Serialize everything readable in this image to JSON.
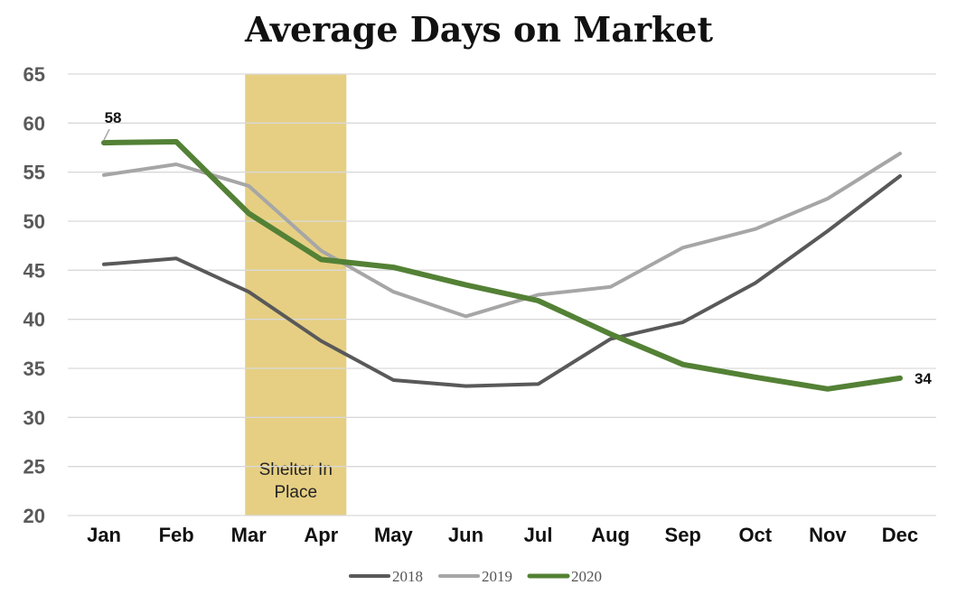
{
  "chart_data": {
    "type": "line",
    "title": "Average Days on Market",
    "categories": [
      "Jan",
      "Feb",
      "Mar",
      "Apr",
      "May",
      "Jun",
      "Jul",
      "Aug",
      "Sep",
      "Oct",
      "Nov",
      "Dec"
    ],
    "ylim": [
      20,
      65
    ],
    "yticks": [
      20,
      25,
      30,
      35,
      40,
      45,
      50,
      55,
      60,
      65
    ],
    "grid": true,
    "legend": "bottom",
    "series": [
      {
        "name": "2018",
        "color": "#595959",
        "values": [
          45.6,
          46.2,
          42.8,
          37.8,
          33.8,
          33.2,
          33.4,
          38.0,
          39.7,
          43.7,
          49.0,
          54.6
        ]
      },
      {
        "name": "2019",
        "color": "#a6a6a6",
        "values": [
          54.7,
          55.8,
          53.6,
          47.0,
          42.8,
          40.3,
          42.5,
          43.3,
          47.3,
          49.2,
          52.3,
          56.9
        ]
      },
      {
        "name": "2020",
        "color": "#538135",
        "values": [
          58,
          58.1,
          50.8,
          46.1,
          45.3,
          43.5,
          41.9,
          38.5,
          35.4,
          34.1,
          32.9,
          34
        ]
      }
    ],
    "data_labels": [
      {
        "series": "2020",
        "category": "Jan",
        "text": "58"
      },
      {
        "series": "2020",
        "category": "Dec",
        "text": "34"
      }
    ],
    "highlight": {
      "from": "Mar",
      "to": "Apr",
      "color": "#e6cf83",
      "label_lines": [
        "Shelter In",
        "Place"
      ]
    }
  }
}
